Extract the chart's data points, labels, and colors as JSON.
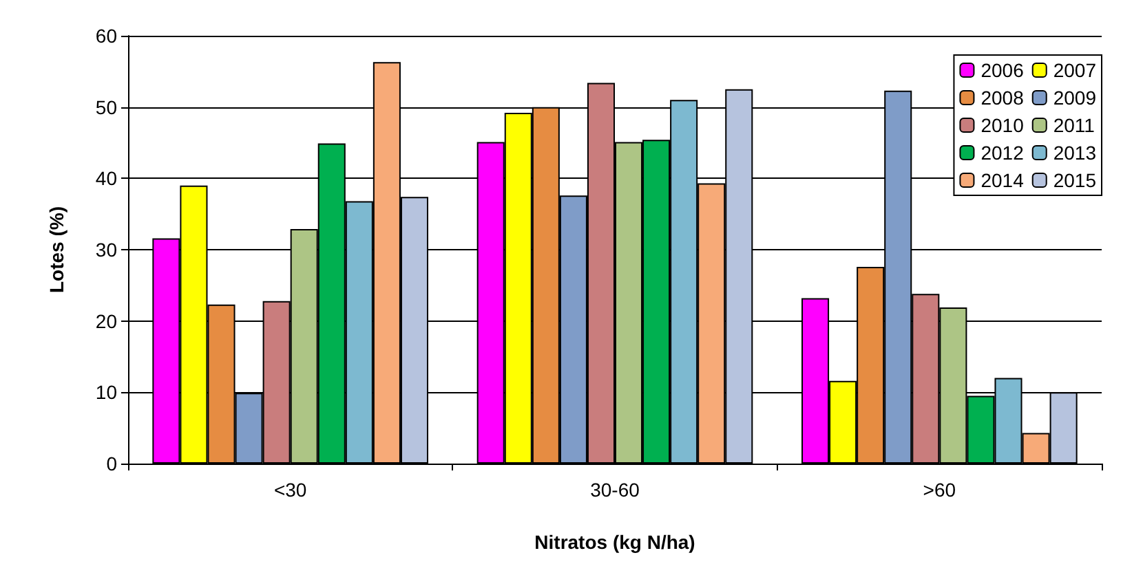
{
  "chart_data": {
    "type": "bar",
    "xlabel": "Nitratos (kg N/ha)",
    "ylabel": "Lotes (%)",
    "categories": [
      "<30",
      "30-60",
      ">60"
    ],
    "series": [
      {
        "name": "2006",
        "color": "#ff00ff",
        "values": [
          31.6,
          45.1,
          23.2
        ]
      },
      {
        "name": "2007",
        "color": "#ffff00",
        "values": [
          39.0,
          49.2,
          11.6
        ]
      },
      {
        "name": "2008",
        "color": "#e68c42",
        "values": [
          22.3,
          50.0,
          27.6
        ]
      },
      {
        "name": "2009",
        "color": "#7f9cc8",
        "values": [
          9.9,
          37.6,
          52.3
        ]
      },
      {
        "name": "2010",
        "color": "#c97d7d",
        "values": [
          22.8,
          53.4,
          23.8
        ]
      },
      {
        "name": "2011",
        "color": "#adc585",
        "values": [
          32.9,
          45.1,
          21.9
        ]
      },
      {
        "name": "2012",
        "color": "#00b050",
        "values": [
          44.9,
          45.4,
          9.5
        ]
      },
      {
        "name": "2013",
        "color": "#7db9d0",
        "values": [
          36.8,
          51.0,
          12.0
        ]
      },
      {
        "name": "2014",
        "color": "#f7aa78",
        "values": [
          56.3,
          39.3,
          4.3
        ]
      },
      {
        "name": "2015",
        "color": "#b6c3de",
        "values": [
          37.4,
          52.5,
          10.0
        ]
      }
    ],
    "ylim": [
      0,
      60
    ],
    "yticks": [
      0,
      10,
      20,
      30,
      40,
      50,
      60
    ],
    "grid": "y",
    "legend": "top right"
  }
}
